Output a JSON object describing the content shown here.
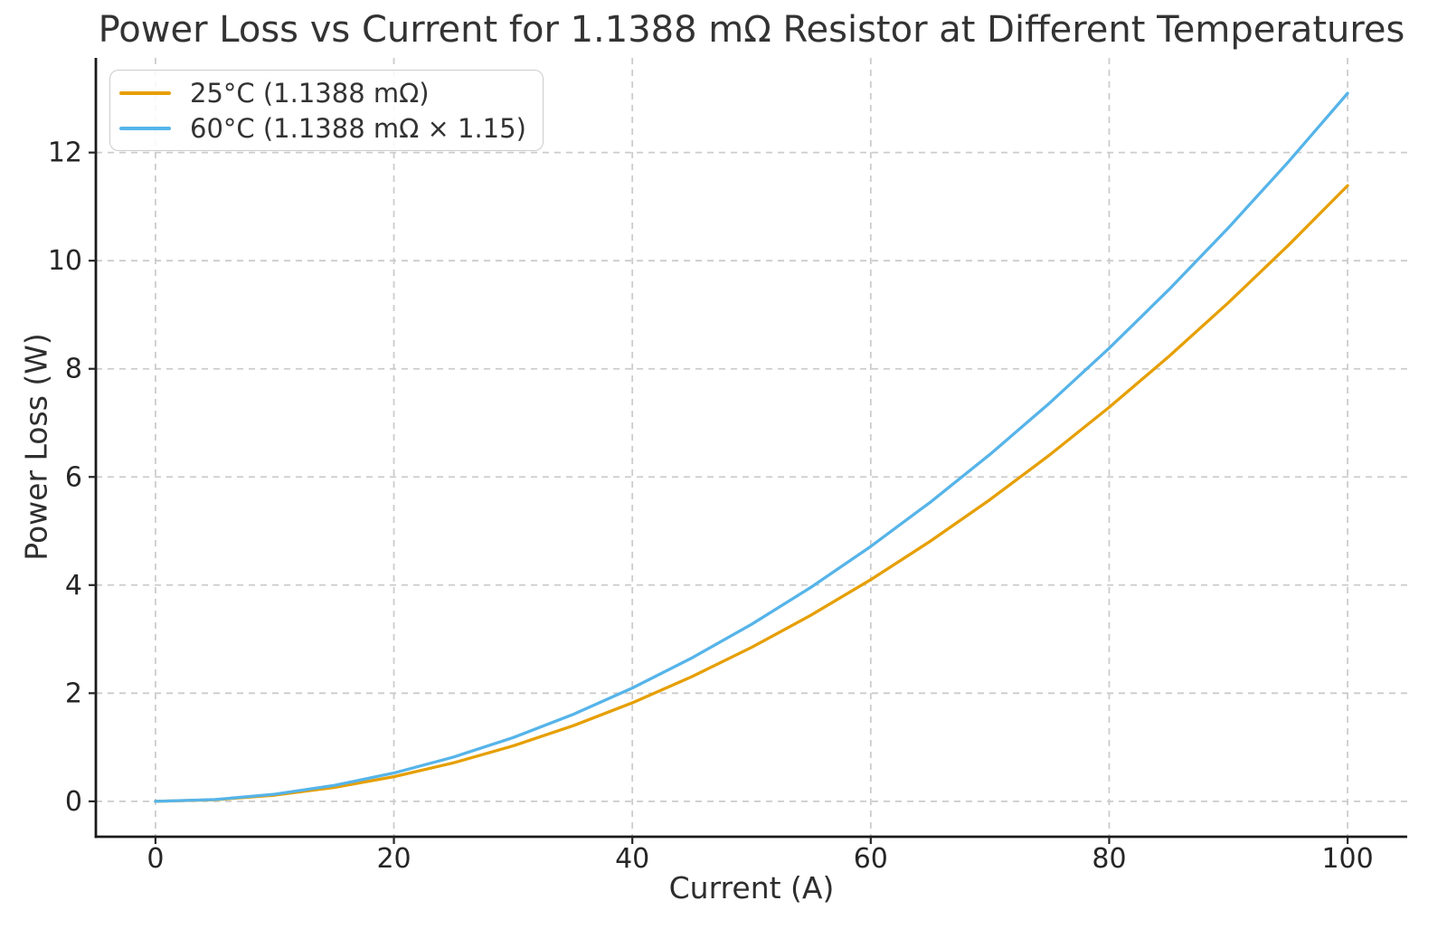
{
  "chart_data": {
    "type": "line",
    "title": "Power Loss vs Current for 1.1388 mΩ Resistor at Different Temperatures",
    "xlabel": "Current (A)",
    "ylabel": "Power Loss (W)",
    "xlim": [
      -5,
      105
    ],
    "ylim": [
      -0.655,
      13.751
    ],
    "xticks": [
      0,
      20,
      40,
      60,
      80,
      100
    ],
    "yticks": [
      0,
      2,
      4,
      6,
      8,
      10,
      12
    ],
    "grid": true,
    "grid_style": "dashed",
    "grid_color": "#cccccc",
    "axis_color": "#1a1a1a",
    "tick_color": "#262626",
    "text_color": "#333333",
    "background_color": "#ffffff",
    "legend_position": "upper left",
    "x": [
      0,
      5,
      10,
      15,
      20,
      25,
      30,
      35,
      40,
      45,
      50,
      55,
      60,
      65,
      70,
      75,
      80,
      85,
      90,
      95,
      100
    ],
    "series": [
      {
        "name": "25°C (1.1388 mΩ)",
        "color": "#E69F00",
        "values": [
          0,
          0.0285,
          0.1139,
          0.2562,
          0.4555,
          0.7118,
          1.0249,
          1.3951,
          1.8221,
          2.3061,
          2.847,
          3.4449,
          4.0997,
          4.8114,
          5.5801,
          6.4058,
          7.2883,
          8.2278,
          9.2243,
          10.2777,
          11.388
        ]
      },
      {
        "name": "60°C (1.1388 mΩ × 1.15)",
        "color": "#56B4E9",
        "values": [
          0,
          0.0327,
          0.131,
          0.2947,
          0.5239,
          0.8185,
          1.1787,
          1.6043,
          2.0954,
          2.652,
          3.274,
          3.9616,
          4.7146,
          5.5331,
          6.4171,
          7.3666,
          8.3816,
          9.462,
          10.6079,
          11.8193,
          13.0962
        ]
      }
    ]
  }
}
